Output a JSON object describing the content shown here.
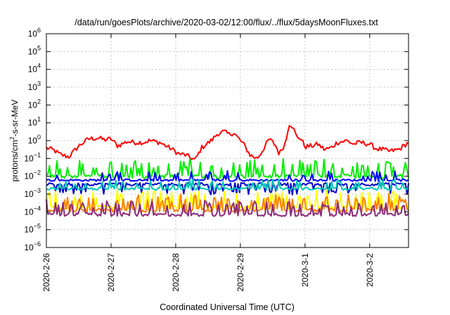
{
  "chart_data": {
    "type": "line",
    "title": "/data/run/goesPlots/archive/2020-03-02/12:00/flux/../flux/5daysMoonFluxes.txt",
    "xlabel": "Coordinated Universal Time (UTC)",
    "ylabel": "protons/cm²-s-sr-MeV",
    "ylabel_parts": [
      "protons/cm",
      "2",
      "-s-sr-MeV"
    ],
    "yscale": "log",
    "ylim_exp": [
      -6,
      6
    ],
    "ytick_exps": [
      -6,
      -5,
      -4,
      -3,
      -2,
      -1,
      0,
      1,
      2,
      3,
      4,
      5,
      6
    ],
    "ytick_base": "10",
    "xlim_days": [
      0,
      5.6
    ],
    "xticks": [
      {
        "label": "2020-2-26",
        "day": 0
      },
      {
        "label": "2020-2-27",
        "day": 1
      },
      {
        "label": "2020-2-28",
        "day": 2
      },
      {
        "label": "2020-2-29",
        "day": 3
      },
      {
        "label": "2020-3-1",
        "day": 4
      },
      {
        "label": "2020-3-2",
        "day": 5
      }
    ],
    "grid": true,
    "series": [
      {
        "color": "#ff0000",
        "base_exp_points": [
          [
            0,
            -0.4
          ],
          [
            0.12,
            -0.55
          ],
          [
            0.22,
            -0.8
          ],
          [
            0.35,
            -0.9
          ],
          [
            0.5,
            -0.3
          ],
          [
            0.65,
            0.1
          ],
          [
            0.8,
            0.15
          ],
          [
            0.9,
            0.05
          ],
          [
            1.0,
            0.1
          ],
          [
            1.1,
            -0.3
          ],
          [
            1.25,
            -0.05
          ],
          [
            1.35,
            -0.1
          ],
          [
            1.5,
            -0.1
          ],
          [
            1.6,
            0.0
          ],
          [
            1.75,
            -0.1
          ],
          [
            1.85,
            -0.3
          ],
          [
            1.95,
            -0.5
          ],
          [
            2.05,
            -0.75
          ],
          [
            2.15,
            -0.8
          ],
          [
            2.3,
            -1.1
          ],
          [
            2.4,
            -0.4
          ],
          [
            2.55,
            0.0
          ],
          [
            2.65,
            0.4
          ],
          [
            2.75,
            0.5
          ],
          [
            2.82,
            0.35
          ],
          [
            2.9,
            0.45
          ],
          [
            2.95,
            0.2
          ],
          [
            3.05,
            -0.2
          ],
          [
            3.15,
            -0.8
          ],
          [
            3.25,
            -1.0
          ],
          [
            3.3,
            -0.8
          ],
          [
            3.4,
            -0.2
          ],
          [
            3.45,
            0.1
          ],
          [
            3.55,
            -0.3
          ],
          [
            3.6,
            -0.75
          ],
          [
            3.7,
            -0.1
          ],
          [
            3.75,
            0.95
          ],
          [
            3.8,
            0.85
          ],
          [
            3.87,
            0.2
          ],
          [
            3.93,
            0.15
          ],
          [
            4.0,
            -0.35
          ],
          [
            4.1,
            -0.3
          ],
          [
            4.2,
            -0.2
          ],
          [
            4.3,
            -0.5
          ],
          [
            4.4,
            -0.4
          ],
          [
            4.5,
            -0.1
          ],
          [
            4.65,
            0.0
          ],
          [
            4.75,
            -0.2
          ],
          [
            4.85,
            -0.1
          ],
          [
            5.0,
            -0.2
          ],
          [
            5.1,
            -0.45
          ],
          [
            5.2,
            -0.5
          ],
          [
            5.3,
            -0.6
          ],
          [
            5.45,
            -0.5
          ],
          [
            5.6,
            -0.1
          ]
        ],
        "noise": 0.14,
        "spike_prob": 0,
        "spike": 0
      },
      {
        "color": "#00ee00",
        "base_exp_points": [
          [
            0,
            -2.0
          ],
          [
            5.6,
            -2.0
          ]
        ],
        "noise": 0.12,
        "spike_prob": 0.25,
        "spike": 0.9
      },
      {
        "color": "#0000ff",
        "base_exp_points": [
          [
            0,
            -2.22
          ],
          [
            5.6,
            -2.22
          ]
        ],
        "noise": 0.06,
        "spike_prob": 0.12,
        "spike": 0.5
      },
      {
        "color": "#0000cc",
        "base_exp_points": [
          [
            0,
            -2.45
          ],
          [
            5.6,
            -2.45
          ]
        ],
        "noise": 0.08,
        "spike_prob": 0.18,
        "spike": -0.55
      },
      {
        "color": "#00c8b4",
        "base_exp_points": [
          [
            0,
            -2.7
          ],
          [
            5.6,
            -2.7
          ]
        ],
        "noise": 0.07,
        "spike_prob": 0.2,
        "spike": 0.5
      },
      {
        "color": "#ffff00",
        "base_exp_points": [
          [
            0,
            -3.75
          ],
          [
            5.6,
            -3.75
          ]
        ],
        "noise": 0.1,
        "spike_prob": 0.28,
        "spike": 0.95
      },
      {
        "color": "#ff8000",
        "base_exp_points": [
          [
            0,
            -3.9
          ],
          [
            5.6,
            -3.9
          ]
        ],
        "noise": 0.1,
        "spike_prob": 0.28,
        "spike": 0.85
      },
      {
        "color": "#8b2a7a",
        "base_exp_points": [
          [
            0,
            -4.15
          ],
          [
            5.6,
            -4.15
          ]
        ],
        "noise": 0.1,
        "spike_prob": 0.3,
        "spike": 0.75
      }
    ]
  }
}
